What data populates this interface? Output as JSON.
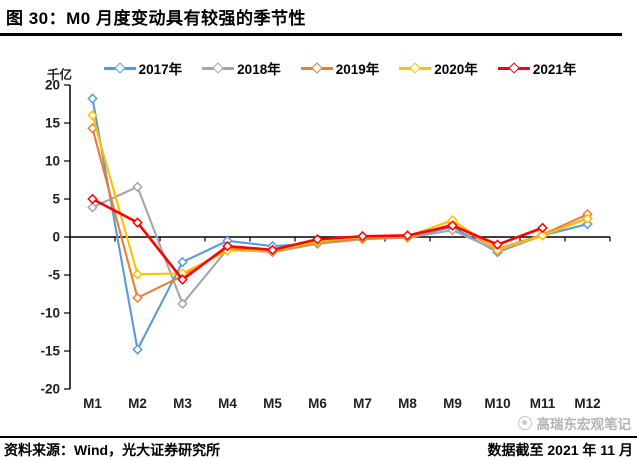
{
  "title": "图 30：M0 月度变动具有较强的季节性",
  "watermark": {
    "text": "高瑞东宏观笔记",
    "icon": "circle-logo-icon"
  },
  "footer": {
    "source": "资料来源：Wind，光大证券研究所",
    "note": "数据截至 2021 年 11 月"
  },
  "chart_data": {
    "type": "line",
    "title": "图 30：M0 月度变动具有较强的季节性",
    "unit_label": "千亿",
    "xlabel": "",
    "ylabel": "千亿",
    "categories": [
      "M1",
      "M2",
      "M3",
      "M4",
      "M5",
      "M6",
      "M7",
      "M8",
      "M9",
      "M10",
      "M11",
      "M12"
    ],
    "y_ticks": [
      20,
      15,
      10,
      5,
      0,
      -5,
      -10,
      -15,
      -20
    ],
    "ylim": [
      -20,
      20
    ],
    "grid": false,
    "legend_position": "top",
    "marker": "open-diamond",
    "axis_color": "#000000",
    "label_color": "#1f1f1f",
    "series": [
      {
        "name": "2017年",
        "color": "#5B9BD5",
        "values": [
          18.2,
          -14.8,
          -3.3,
          -0.5,
          -1.2,
          -0.8,
          -0.2,
          0.0,
          1.3,
          -2.0,
          0.2,
          1.7
        ]
      },
      {
        "name": "2018年",
        "color": "#A6A6A6",
        "values": [
          3.9,
          6.6,
          -8.8,
          -1.6,
          -2.0,
          -0.9,
          -0.3,
          -0.1,
          0.9,
          -1.8,
          0.2,
          2.5
        ]
      },
      {
        "name": "2019年",
        "color": "#ED7D31",
        "values": [
          14.3,
          -8.0,
          -5.1,
          -1.5,
          -1.9,
          -0.7,
          -0.2,
          0.0,
          1.7,
          -1.6,
          0.3,
          3.0
        ]
      },
      {
        "name": "2020年",
        "color": "#FFC000",
        "values": [
          16.0,
          -4.9,
          -4.8,
          -1.8,
          -1.8,
          -0.6,
          0.0,
          0.1,
          2.2,
          -1.7,
          0.2,
          2.4
        ]
      },
      {
        "name": "2021年",
        "color": "#FF0000",
        "values": [
          5.0,
          1.9,
          -5.6,
          -1.2,
          -1.7,
          -0.3,
          0.1,
          0.2,
          1.5,
          -1.0,
          1.2,
          null
        ]
      }
    ]
  }
}
